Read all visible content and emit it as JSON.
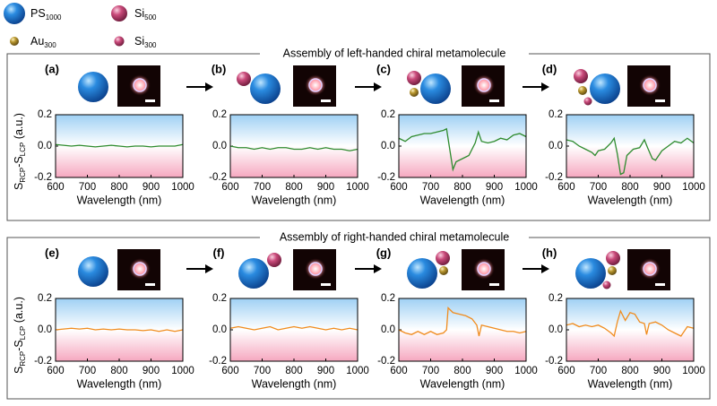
{
  "legend": [
    {
      "label": "PS",
      "sub": "1000"
    },
    {
      "label": "Si",
      "sub": "500"
    },
    {
      "label": "Au",
      "sub": "300"
    },
    {
      "label": "Si",
      "sub": "300"
    }
  ],
  "sections": [
    {
      "title": "Assembly of left-handed chiral metamolecule"
    },
    {
      "title": "Assembly of right-handed chiral metamolecule"
    }
  ],
  "chart_data": [
    {
      "type": "line",
      "panel": "(a)",
      "ylabel": [
        "S",
        "RCP",
        "-S",
        "LCP",
        " (a.u.)"
      ],
      "xlabel": "Wavelength (nm)",
      "x": [
        600,
        625,
        650,
        675,
        700,
        725,
        750,
        775,
        800,
        825,
        850,
        875,
        900,
        925,
        950,
        975,
        1000
      ],
      "series": [
        {
          "color": "#2e8b2e",
          "values": [
            0.01,
            0.005,
            0,
            0.005,
            0,
            -0.005,
            0,
            0.005,
            0,
            -0.005,
            0,
            0,
            -0.005,
            0,
            0,
            0,
            0.01
          ]
        }
      ],
      "xlim": [
        600,
        1000
      ],
      "ylim": [
        -0.2,
        0.2
      ],
      "xticks": [
        600,
        700,
        800,
        900,
        1000
      ],
      "yticks": [
        -0.2,
        {
          "value": 0,
          "label": "0.0"
        },
        0.2
      ]
    },
    {
      "type": "line",
      "panel": "(b)",
      "xlabel": "Wavelength (nm)",
      "x": [
        600,
        625,
        650,
        675,
        700,
        725,
        750,
        775,
        800,
        825,
        850,
        875,
        900,
        925,
        950,
        975,
        1000
      ],
      "series": [
        {
          "color": "#2e8b2e",
          "values": [
            0,
            -0.01,
            -0.01,
            -0.02,
            -0.01,
            -0.02,
            -0.01,
            -0.01,
            -0.02,
            -0.02,
            -0.01,
            -0.02,
            -0.01,
            -0.02,
            -0.02,
            -0.03,
            -0.02
          ]
        }
      ],
      "xlim": [
        600,
        1000
      ],
      "ylim": [
        -0.2,
        0.2
      ],
      "xticks": [
        600,
        700,
        800,
        900,
        1000
      ],
      "yticks": [
        -0.2,
        {
          "value": 0,
          "label": "0.0"
        },
        0.2
      ]
    },
    {
      "type": "line",
      "panel": "(c)",
      "xlabel": "Wavelength (nm)",
      "x": [
        600,
        620,
        640,
        660,
        680,
        700,
        720,
        740,
        750,
        760,
        770,
        780,
        800,
        820,
        840,
        850,
        860,
        880,
        900,
        920,
        940,
        960,
        980,
        1000
      ],
      "series": [
        {
          "color": "#2e8b2e",
          "values": [
            0.05,
            0.03,
            0.06,
            0.07,
            0.08,
            0.08,
            0.09,
            0.1,
            0.11,
            -0.02,
            -0.15,
            -0.1,
            -0.08,
            -0.06,
            0.02,
            0.09,
            0.03,
            0.02,
            0.03,
            0.05,
            0.04,
            0.07,
            0.08,
            0.06
          ]
        }
      ],
      "xlim": [
        600,
        1000
      ],
      "ylim": [
        -0.2,
        0.2
      ],
      "xticks": [
        600,
        700,
        800,
        900,
        1000
      ],
      "yticks": [
        -0.2,
        {
          "value": 0,
          "label": "0.0"
        },
        0.2
      ]
    },
    {
      "type": "line",
      "panel": "(d)",
      "xlabel": "Wavelength (nm)",
      "x": [
        600,
        620,
        640,
        660,
        680,
        690,
        700,
        720,
        740,
        750,
        760,
        770,
        780,
        790,
        810,
        830,
        845,
        855,
        870,
        880,
        900,
        920,
        940,
        960,
        980,
        1000
      ],
      "series": [
        {
          "color": "#2e8b2e",
          "values": [
            0.04,
            0.03,
            0,
            -0.02,
            -0.04,
            -0.06,
            -0.03,
            -0.02,
            0.02,
            0.05,
            -0.05,
            -0.18,
            -0.17,
            -0.06,
            -0.02,
            -0.01,
            0.04,
            -0.01,
            -0.08,
            -0.09,
            -0.03,
            0,
            0.03,
            0.02,
            0.05,
            0.02
          ]
        }
      ],
      "xlim": [
        600,
        1000
      ],
      "ylim": [
        -0.2,
        0.2
      ],
      "xticks": [
        600,
        700,
        800,
        900,
        1000
      ],
      "yticks": [
        -0.2,
        {
          "value": 0,
          "label": "0.0"
        },
        0.2
      ]
    },
    {
      "type": "line",
      "panel": "(e)",
      "ylabel": [
        "S",
        "RCP",
        "-S",
        "LCP",
        " (a.u.)"
      ],
      "xlabel": "Wavelength (nm)",
      "x": [
        600,
        625,
        650,
        675,
        700,
        725,
        750,
        775,
        800,
        825,
        850,
        875,
        900,
        925,
        950,
        975,
        1000
      ],
      "series": [
        {
          "color": "#f08c1e",
          "values": [
            0,
            0.005,
            0.01,
            0.005,
            0.01,
            0,
            0.005,
            0,
            0.005,
            0,
            0,
            -0.005,
            0,
            -0.01,
            0,
            -0.01,
            0
          ]
        }
      ],
      "xlim": [
        600,
        1000
      ],
      "ylim": [
        -0.2,
        0.2
      ],
      "xticks": [
        600,
        700,
        800,
        900,
        1000
      ],
      "yticks": [
        -0.2,
        {
          "value": 0,
          "label": "0.0"
        },
        0.2
      ]
    },
    {
      "type": "line",
      "panel": "(f)",
      "xlabel": "Wavelength (nm)",
      "x": [
        600,
        625,
        650,
        675,
        700,
        725,
        750,
        775,
        800,
        825,
        850,
        875,
        900,
        925,
        950,
        975,
        1000
      ],
      "series": [
        {
          "color": "#f08c1e",
          "values": [
            0.01,
            0.02,
            0.01,
            0,
            0.01,
            0.02,
            0,
            0.01,
            0.02,
            0.01,
            0.02,
            0.01,
            0,
            0.01,
            0,
            0.01,
            0
          ]
        }
      ],
      "xlim": [
        600,
        1000
      ],
      "ylim": [
        -0.2,
        0.2
      ],
      "xticks": [
        600,
        700,
        800,
        900,
        1000
      ],
      "yticks": [
        -0.2,
        {
          "value": 0,
          "label": "0.0"
        },
        0.2
      ]
    },
    {
      "type": "line",
      "panel": "(g)",
      "xlabel": "Wavelength (nm)",
      "x": [
        600,
        620,
        640,
        660,
        680,
        700,
        720,
        740,
        750,
        755,
        770,
        790,
        810,
        830,
        845,
        852,
        860,
        880,
        900,
        920,
        940,
        960,
        980,
        1000
      ],
      "series": [
        {
          "color": "#f08c1e",
          "values": [
            0,
            -0.02,
            -0.03,
            -0.01,
            -0.03,
            -0.01,
            -0.03,
            -0.02,
            0,
            0.14,
            0.11,
            0.1,
            0.09,
            0.07,
            0.03,
            -0.04,
            0.03,
            0.02,
            0.01,
            0,
            -0.01,
            -0.01,
            -0.02,
            -0.01
          ]
        }
      ],
      "xlim": [
        600,
        1000
      ],
      "ylim": [
        -0.2,
        0.2
      ],
      "xticks": [
        600,
        700,
        800,
        900,
        1000
      ],
      "yticks": [
        -0.2,
        {
          "value": 0,
          "label": "0.0"
        },
        0.2
      ]
    },
    {
      "type": "line",
      "panel": "(h)",
      "xlabel": "Wavelength (nm)",
      "x": [
        600,
        620,
        640,
        660,
        680,
        700,
        720,
        740,
        750,
        760,
        770,
        785,
        800,
        815,
        830,
        845,
        852,
        860,
        880,
        900,
        920,
        940,
        960,
        980,
        1000
      ],
      "series": [
        {
          "color": "#f08c1e",
          "values": [
            0.03,
            0.04,
            0.02,
            0.03,
            0.02,
            0.03,
            0.01,
            -0.02,
            -0.04,
            0.05,
            0.12,
            0.06,
            0.11,
            0.1,
            0.05,
            0.04,
            -0.03,
            0.04,
            0.05,
            0.03,
            0,
            -0.02,
            -0.04,
            0.02,
            0.01
          ]
        }
      ],
      "xlim": [
        600,
        1000
      ],
      "ylim": [
        -0.2,
        0.2
      ],
      "xticks": [
        600,
        700,
        800,
        900,
        1000
      ],
      "yticks": [
        -0.2,
        {
          "value": 0,
          "label": "0.0"
        },
        0.2
      ]
    }
  ]
}
